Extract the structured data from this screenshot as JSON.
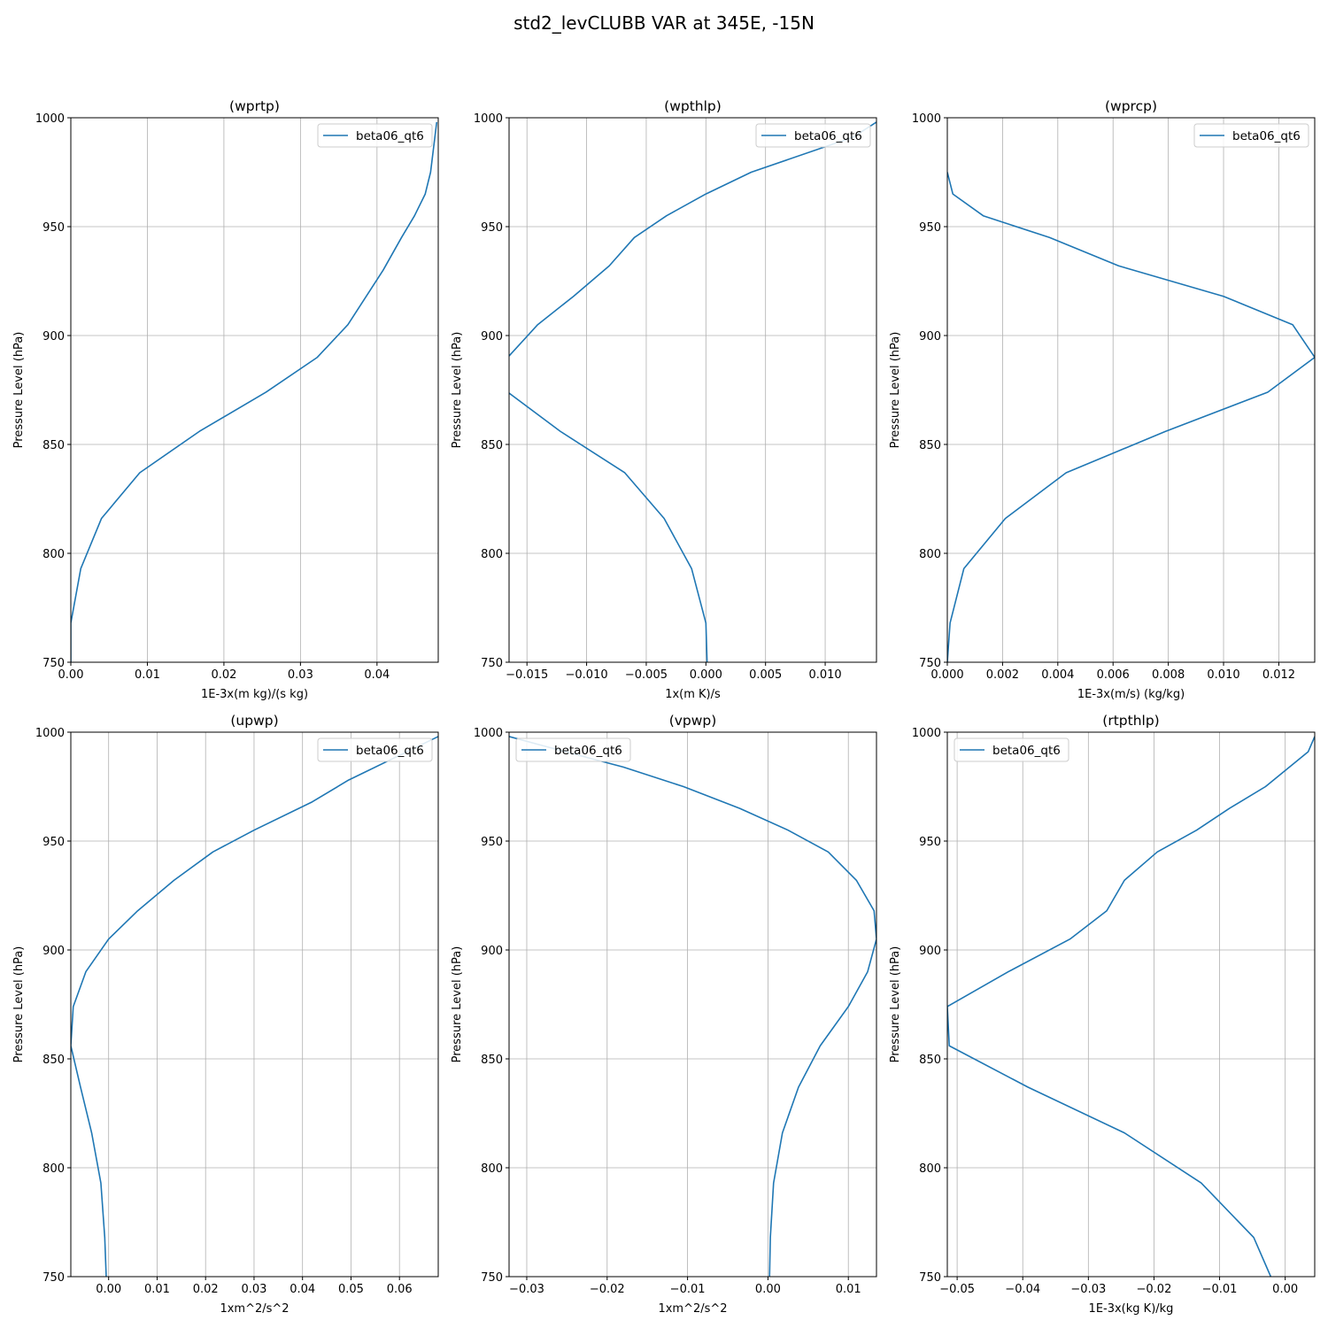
{
  "figure": {
    "title": "std2_levCLUBB VAR at 345E, -15N"
  },
  "colors": {
    "line": "#1f77b4",
    "grid": "#b0b0b0",
    "axis": "#000000"
  },
  "chart_data": [
    {
      "type": "line",
      "title": "(wprtp)",
      "xlabel": "1E-3x(m kg)/(s kg)",
      "ylabel": "Pressure Level (hPa)",
      "xlim": [
        0.0,
        0.048
      ],
      "ylim": [
        1000,
        750
      ],
      "xticks": [
        0.0,
        0.01,
        0.02,
        0.03,
        0.04
      ],
      "xtick_labels": [
        "0.00",
        "0.01",
        "0.02",
        "0.03",
        "0.04"
      ],
      "yticks": [
        750,
        800,
        850,
        900,
        950,
        1000
      ],
      "ytick_labels": [
        "750",
        "800",
        "850",
        "900",
        "950",
        "1000"
      ],
      "grid": true,
      "legend_position": "upper right",
      "series": [
        {
          "name": "beta06_qt6",
          "x": [
            0.0,
            0.0,
            0.0013,
            0.004,
            0.009,
            0.0168,
            0.0255,
            0.0322,
            0.0362,
            0.0408,
            0.0432,
            0.0449,
            0.0463,
            0.047,
            0.0478
          ],
          "y": [
            750,
            768,
            793,
            816,
            837,
            856,
            874,
            890,
            905,
            930,
            945,
            955,
            965,
            975,
            998
          ]
        }
      ]
    },
    {
      "type": "line",
      "title": "(wpthlp)",
      "xlabel": "1x(m K)/s",
      "ylabel": "Pressure Level (hPa)",
      "xlim": [
        -0.0165,
        0.0143
      ],
      "ylim": [
        1000,
        750
      ],
      "xticks": [
        -0.015,
        -0.01,
        -0.005,
        0.0,
        0.005,
        0.01
      ],
      "xtick_labels": [
        "−0.015",
        "−0.010",
        "−0.005",
        "0.000",
        "0.005",
        "0.010"
      ],
      "yticks": [
        750,
        800,
        850,
        900,
        950,
        1000
      ],
      "ytick_labels": [
        "750",
        "800",
        "850",
        "900",
        "950",
        "1000"
      ],
      "grid": true,
      "legend_position": "upper right",
      "series": [
        {
          "name": "beta06_qt6",
          "x": [
            0.0001,
            0.0,
            -0.0012,
            -0.0035,
            -0.0068,
            -0.0122,
            -0.0166,
            -0.0166,
            -0.0141,
            -0.0111,
            -0.0081,
            -0.006,
            -0.0033,
            0.0,
            0.0038,
            0.0123,
            0.0143
          ],
          "y": [
            750,
            768,
            793,
            816,
            837,
            856,
            874,
            890,
            905,
            918,
            932,
            945,
            955,
            965,
            975,
            991,
            998
          ]
        }
      ]
    },
    {
      "type": "line",
      "title": "(wprcp)",
      "xlabel": "1E-3x(m/s) (kg/kg)",
      "ylabel": "Pressure Level (hPa)",
      "xlim": [
        0.0,
        0.0133
      ],
      "ylim": [
        1000,
        750
      ],
      "xticks": [
        0.0,
        0.002,
        0.004,
        0.006,
        0.008,
        0.01,
        0.012
      ],
      "xtick_labels": [
        "0.000",
        "0.002",
        "0.004",
        "0.006",
        "0.008",
        "0.010",
        "0.012"
      ],
      "yticks": [
        750,
        800,
        850,
        900,
        950,
        1000
      ],
      "ytick_labels": [
        "750",
        "800",
        "850",
        "900",
        "950",
        "1000"
      ],
      "grid": true,
      "legend_position": "upper right",
      "series": [
        {
          "name": "beta06_qt6",
          "x": [
            0.0,
            0.0001,
            0.0006,
            0.0021,
            0.0043,
            0.0079,
            0.0116,
            0.0133,
            0.0125,
            0.01,
            0.0062,
            0.0037,
            0.0013,
            0.0002,
            0.0
          ],
          "y": [
            750,
            768,
            793,
            816,
            837,
            856,
            874,
            890,
            905,
            918,
            932,
            945,
            955,
            965,
            975
          ]
        }
      ]
    },
    {
      "type": "line",
      "title": "(upwp)",
      "xlabel": "1xm^2/s^2",
      "ylabel": "Pressure Level (hPa)",
      "xlim": [
        -0.0078,
        0.068
      ],
      "ylim": [
        1000,
        750
      ],
      "xticks": [
        0.0,
        0.01,
        0.02,
        0.03,
        0.04,
        0.05,
        0.06
      ],
      "xtick_labels": [
        "0.00",
        "0.01",
        "0.02",
        "0.03",
        "0.04",
        "0.05",
        "0.06"
      ],
      "yticks": [
        750,
        800,
        850,
        900,
        950,
        1000
      ],
      "ytick_labels": [
        "750",
        "800",
        "850",
        "900",
        "950",
        "1000"
      ],
      "grid": true,
      "legend_position": "upper right",
      "series": [
        {
          "name": "beta06_qt6",
          "x": [
            -0.0005,
            -0.0008,
            -0.0016,
            -0.0035,
            -0.0058,
            -0.0078,
            -0.0073,
            -0.0047,
            0.0,
            0.006,
            0.0135,
            0.0215,
            0.03,
            0.042,
            0.0495,
            0.068
          ],
          "y": [
            750,
            768,
            793,
            816,
            837,
            856,
            874,
            890,
            905,
            918,
            932,
            945,
            955,
            968,
            978,
            998
          ]
        }
      ]
    },
    {
      "type": "line",
      "title": "(vpwp)",
      "xlabel": "1xm^2/s^2",
      "ylabel": "Pressure Level (hPa)",
      "xlim": [
        -0.0322,
        0.0135
      ],
      "ylim": [
        1000,
        750
      ],
      "xticks": [
        -0.03,
        -0.02,
        -0.01,
        0.0,
        0.01
      ],
      "xtick_labels": [
        "−0.03",
        "−0.02",
        "−0.01",
        "0.00",
        "0.01"
      ],
      "yticks": [
        750,
        800,
        850,
        900,
        950,
        1000
      ],
      "ytick_labels": [
        "750",
        "800",
        "850",
        "900",
        "950",
        "1000"
      ],
      "grid": true,
      "legend_position": "upper left",
      "series": [
        {
          "name": "beta06_qt6",
          "x": [
            0.0002,
            0.0003,
            0.0007,
            0.0018,
            0.0038,
            0.0065,
            0.01,
            0.0124,
            0.0135,
            0.0132,
            0.011,
            0.0075,
            0.0025,
            -0.0035,
            -0.0105,
            -0.018,
            -0.0252,
            -0.0322
          ],
          "y": [
            750,
            768,
            793,
            816,
            837,
            856,
            874,
            890,
            905,
            918,
            932,
            945,
            955,
            965,
            975,
            984,
            991,
            998
          ]
        }
      ]
    },
    {
      "type": "line",
      "title": "(rtpthlp)",
      "xlabel": "1E-3x(kg K)/kg",
      "ylabel": "Pressure Level (hPa)",
      "xlim": [
        -0.0515,
        0.0045
      ],
      "ylim": [
        1000,
        750
      ],
      "xticks": [
        -0.05,
        -0.04,
        -0.03,
        -0.02,
        -0.01,
        0.0
      ],
      "xtick_labels": [
        "−0.05",
        "−0.04",
        "−0.03",
        "−0.02",
        "−0.01",
        "0.00"
      ],
      "yticks": [
        750,
        800,
        850,
        900,
        950,
        1000
      ],
      "ytick_labels": [
        "750",
        "800",
        "850",
        "900",
        "950",
        "1000"
      ],
      "grid": true,
      "legend_position": "upper left",
      "series": [
        {
          "name": "beta06_qt6",
          "x": [
            -0.0022,
            -0.0048,
            -0.0128,
            -0.0245,
            -0.0392,
            -0.0512,
            -0.0515,
            -0.0422,
            -0.0328,
            -0.0272,
            -0.0245,
            -0.0195,
            -0.0135,
            -0.0085,
            -0.003,
            0.0035,
            0.0045
          ],
          "y": [
            750,
            768,
            793,
            816,
            837,
            856,
            874,
            890,
            905,
            918,
            932,
            945,
            955,
            965,
            975,
            991,
            998
          ]
        }
      ]
    }
  ]
}
